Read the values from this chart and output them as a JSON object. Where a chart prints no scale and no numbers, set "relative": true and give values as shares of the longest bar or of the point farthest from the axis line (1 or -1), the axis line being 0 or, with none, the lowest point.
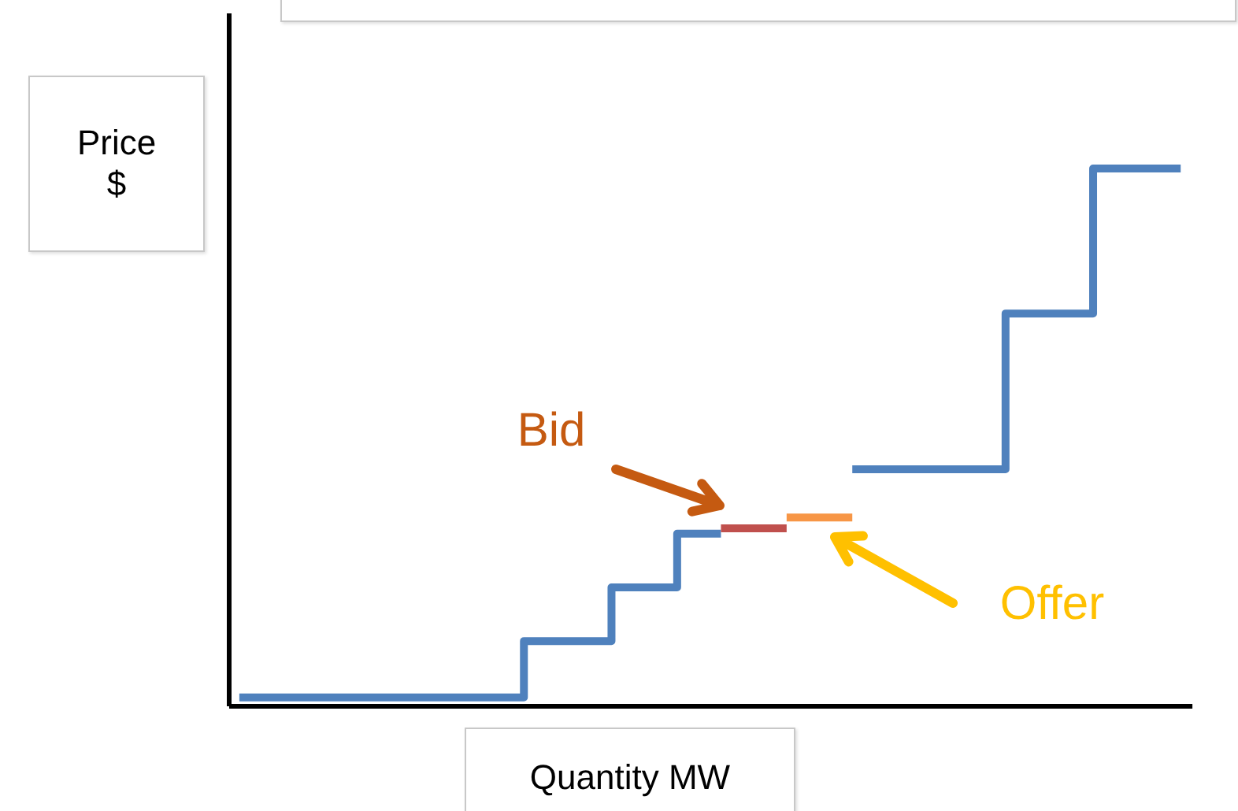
{
  "chart_data": {
    "type": "step",
    "relative": true,
    "xlabel": "Quantity MW",
    "ylabel": "Price $",
    "line_style": "solid",
    "categories": [
      null,
      null,
      null,
      null,
      null,
      null,
      null,
      null,
      null,
      null,
      null,
      null,
      null,
      null,
      null,
      null,
      null,
      null,
      null,
      null,
      null,
      null,
      null,
      null,
      null,
      null,
      null,
      null,
      null,
      null,
      null,
      null,
      null,
      null,
      null,
      null,
      null,
      null,
      null,
      null,
      null,
      null,
      null,
      null
    ],
    "series": [
      {
        "color": "#4f81bd",
        "values": [
          0.015,
          0.015,
          0.015,
          0.015,
          0.015,
          0.015,
          0.015,
          0.015,
          0.015,
          0.015,
          0.015,
          0.015,
          0.015,
          0.12,
          0.12,
          0.12,
          0.12,
          0.22,
          0.22,
          0.22,
          0.32,
          0.32,
          0.32,
          null,
          null,
          null,
          null,
          null,
          null,
          null,
          null,
          null,
          null,
          null,
          null,
          null,
          null,
          null,
          null,
          null,
          null,
          null,
          null,
          null
        ]
      },
      {
        "color": "#c0504d",
        "values": [
          null,
          null,
          null,
          null,
          null,
          null,
          null,
          null,
          null,
          null,
          null,
          null,
          null,
          null,
          null,
          null,
          null,
          null,
          null,
          null,
          null,
          null,
          0.33,
          0.33,
          0.33,
          0.33,
          null,
          null,
          null,
          null,
          null,
          null,
          null,
          null,
          null,
          null,
          null,
          null,
          null,
          null,
          null,
          null,
          null,
          null
        ]
      },
      {
        "color": "#f79646",
        "values": [
          null,
          null,
          null,
          null,
          null,
          null,
          null,
          null,
          null,
          null,
          null,
          null,
          null,
          null,
          null,
          null,
          null,
          null,
          null,
          null,
          null,
          null,
          null,
          null,
          null,
          0.35,
          0.35,
          0.35,
          0.35,
          null,
          null,
          null,
          null,
          null,
          null,
          null,
          null,
          null,
          null,
          null,
          null,
          null,
          null,
          null
        ]
      },
      {
        "color": "#4f81bd",
        "values": [
          null,
          null,
          null,
          null,
          null,
          null,
          null,
          null,
          null,
          null,
          null,
          null,
          null,
          null,
          null,
          null,
          null,
          null,
          null,
          null,
          null,
          null,
          null,
          null,
          null,
          null,
          null,
          null,
          0.44,
          0.44,
          0.44,
          0.44,
          0.44,
          0.44,
          0.44,
          0.73,
          0.73,
          0.73,
          0.73,
          1,
          1,
          1,
          1,
          1
        ]
      }
    ],
    "annotations": [
      "Bid",
      "Offer"
    ]
  }
}
